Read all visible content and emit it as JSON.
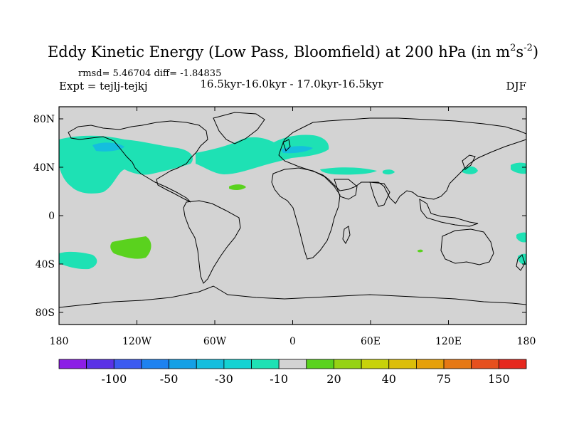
{
  "figure": {
    "title_main": "Eddy Kinetic Energy (Low Pass, Bloomfield) at 200 hPa (in m",
    "title_sup1": "2",
    "title_mid": "s",
    "title_sup2": "-2",
    "title_end": ")",
    "stats": "rmsd= 5.46704 diff= -1.84835",
    "experiment": "Expt = tejlj-tejkj",
    "period": "16.5kyr-16.0kyr - 17.0kyr-16.5kyr",
    "season": "DJF"
  },
  "map_data": {
    "projection": "cylindrical-equidistant",
    "lon_range": [
      -180,
      180
    ],
    "lat_range": [
      -90,
      90
    ],
    "background_color": "#d3d3d3",
    "coastline_color": "#000000",
    "lon_ticks": [
      {
        "value": -180,
        "label": "180"
      },
      {
        "value": -120,
        "label": "120W"
      },
      {
        "value": -60,
        "label": "60W"
      },
      {
        "value": 0,
        "label": "0"
      },
      {
        "value": 60,
        "label": "60E"
      },
      {
        "value": 120,
        "label": "120E"
      },
      {
        "value": 180,
        "label": "180"
      }
    ],
    "lat_ticks": [
      {
        "value": 80,
        "label": "80N"
      },
      {
        "value": 40,
        "label": "40N"
      },
      {
        "value": 0,
        "label": "0"
      },
      {
        "value": -40,
        "label": "40S"
      },
      {
        "value": -80,
        "label": "80S"
      }
    ]
  },
  "colorbar": {
    "colors": [
      "#8c1ee6",
      "#5a32e6",
      "#3c5af0",
      "#1e82f0",
      "#14a0e6",
      "#14bede",
      "#14d2d2",
      "#1ee1b4",
      "#d3d3d3",
      "#5ad21e",
      "#96d214",
      "#c8d20a",
      "#dcbe0a",
      "#e6a00a",
      "#e67814",
      "#e6501e",
      "#e6281e"
    ],
    "labels": [
      {
        "after_index": 1,
        "text": "-100"
      },
      {
        "after_index": 3,
        "text": "-50"
      },
      {
        "after_index": 5,
        "text": "-30"
      },
      {
        "after_index": 7,
        "text": "-10"
      },
      {
        "after_index": 9,
        "text": "20"
      },
      {
        "after_index": 11,
        "text": "40"
      },
      {
        "after_index": 13,
        "text": "75"
      },
      {
        "after_index": 15,
        "text": "150"
      }
    ]
  },
  "anomaly_colors": {
    "cyan": "#1ee1b4",
    "blue": "#14bede",
    "green": "#5ad21e"
  }
}
